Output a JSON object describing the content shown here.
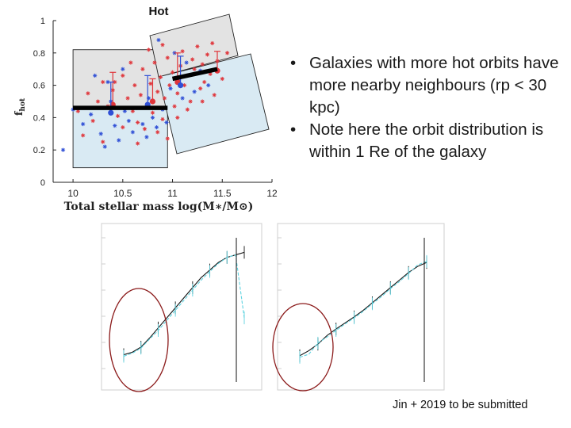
{
  "slide": {
    "bullets": [
      {
        "bullet_glyph": "•",
        "text": "Galaxies with more hot orbits have more nearby neighbours (rp < 30 kpc)"
      },
      {
        "bullet_glyph": "•",
        "text": "Note here the orbit distribution is within 1 Re of the galaxy"
      }
    ],
    "citation": "Jin + 2019 to be submitted"
  },
  "chart_data": [
    {
      "type": "scatter",
      "title": "Hot",
      "xlabel": "Total stellar mass log(M∗/M⊙)",
      "ylabel": "f_hot",
      "ylabel_main": "f",
      "ylabel_sub": "hot",
      "xlim": [
        9.8,
        12
      ],
      "ylim": [
        0,
        1
      ],
      "xticks": [
        "10",
        "10.5",
        "11",
        "11.5",
        "12"
      ],
      "yticks": [
        "0",
        "0.2",
        "0.4",
        "0.6",
        "0.8",
        "1"
      ],
      "grid": false,
      "colors": {
        "red_series": "#e0353a",
        "blue_series": "#2f4fd6",
        "trend": "#000000",
        "gray_region": "#e3e3e3",
        "blue_region": "#d9eaf3"
      },
      "series": [
        {
          "color": "red",
          "marker": "asterisk",
          "points": [
            [
              10.05,
              0.44
            ],
            [
              10.15,
              0.55
            ],
            [
              10.2,
              0.38
            ],
            [
              10.25,
              0.5
            ],
            [
              10.3,
              0.62
            ],
            [
              10.35,
              0.47
            ],
            [
              10.4,
              0.57
            ],
            [
              10.45,
              0.41
            ],
            [
              10.5,
              0.66
            ],
            [
              10.55,
              0.52
            ],
            [
              10.6,
              0.44
            ],
            [
              10.62,
              0.6
            ],
            [
              10.65,
              0.37
            ],
            [
              10.68,
              0.54
            ],
            [
              10.7,
              0.7
            ],
            [
              10.72,
              0.33
            ],
            [
              10.75,
              0.48
            ],
            [
              10.78,
              0.61
            ],
            [
              10.8,
              0.43
            ],
            [
              10.82,
              0.74
            ],
            [
              10.85,
              0.56
            ],
            [
              10.88,
              0.65
            ],
            [
              10.9,
              0.39
            ],
            [
              10.92,
              0.52
            ],
            [
              10.95,
              0.77
            ],
            [
              10.97,
              0.6
            ],
            [
              11.0,
              0.68
            ],
            [
              11.02,
              0.47
            ],
            [
              11.05,
              0.55
            ],
            [
              11.08,
              0.72
            ],
            [
              11.1,
              0.81
            ],
            [
              11.12,
              0.6
            ],
            [
              11.15,
              0.66
            ],
            [
              11.18,
              0.5
            ],
            [
              11.2,
              0.76
            ],
            [
              11.22,
              0.7
            ],
            [
              11.25,
              0.84
            ],
            [
              11.28,
              0.58
            ],
            [
              11.3,
              0.73
            ],
            [
              11.32,
              0.62
            ],
            [
              11.35,
              0.79
            ],
            [
              11.38,
              0.67
            ],
            [
              11.4,
              0.86
            ],
            [
              11.42,
              0.54
            ],
            [
              11.45,
              0.75
            ],
            [
              11.5,
              0.64
            ],
            [
              11.55,
              0.8
            ],
            [
              10.1,
              0.29
            ],
            [
              10.3,
              0.25
            ],
            [
              10.5,
              0.34
            ],
            [
              10.65,
              0.24
            ],
            [
              10.85,
              0.31
            ],
            [
              10.95,
              0.27
            ],
            [
              11.05,
              0.4
            ],
            [
              10.58,
              0.74
            ],
            [
              10.76,
              0.82
            ],
            [
              11.15,
              0.45
            ],
            [
              11.3,
              0.5
            ],
            [
              10.42,
              0.62
            ],
            [
              10.9,
              0.85
            ]
          ]
        },
        {
          "color": "blue",
          "marker": "asterisk",
          "points": [
            [
              9.9,
              0.2
            ],
            [
              10.0,
              0.45
            ],
            [
              10.1,
              0.36
            ],
            [
              10.18,
              0.42
            ],
            [
              10.22,
              0.66
            ],
            [
              10.28,
              0.3
            ],
            [
              10.32,
              0.22
            ],
            [
              10.38,
              0.5
            ],
            [
              10.42,
              0.35
            ],
            [
              10.46,
              0.26
            ],
            [
              10.52,
              0.44
            ],
            [
              10.56,
              0.38
            ],
            [
              10.6,
              0.31
            ],
            [
              10.64,
              0.46
            ],
            [
              10.7,
              0.36
            ],
            [
              10.74,
              0.28
            ],
            [
              10.76,
              0.52
            ],
            [
              10.8,
              0.4
            ],
            [
              10.84,
              0.34
            ],
            [
              10.86,
              0.88
            ],
            [
              10.9,
              0.45
            ],
            [
              10.94,
              0.37
            ],
            [
              10.98,
              0.58
            ],
            [
              11.02,
              0.8
            ],
            [
              11.06,
              0.63
            ],
            [
              11.1,
              0.52
            ],
            [
              11.14,
              0.74
            ],
            [
              11.22,
              0.56
            ],
            [
              11.28,
              0.69
            ],
            [
              11.36,
              0.6
            ],
            [
              10.35,
              0.62
            ],
            [
              10.5,
              0.7
            ]
          ]
        }
      ],
      "binned_means": [
        {
          "color": "red",
          "points": [
            [
              10.4,
              0.48
            ],
            [
              10.8,
              0.5
            ],
            [
              11.05,
              0.62
            ],
            [
              11.45,
              0.69
            ]
          ],
          "upper_error": [
            0.68,
            0.64,
            0.8,
            0.81
          ]
        },
        {
          "color": "blue",
          "points": [
            [
              10.38,
              0.43
            ],
            [
              10.75,
              0.48
            ],
            [
              11.08,
              0.6
            ]
          ],
          "upper_error": [
            0.62,
            0.66,
            0.78
          ]
        }
      ],
      "trend_lines": [
        {
          "x": [
            10.0,
            10.95
          ],
          "y": [
            0.46,
            0.46
          ]
        },
        {
          "x": [
            11.0,
            11.45
          ],
          "y": [
            0.64,
            0.7
          ]
        }
      ],
      "regions": [
        {
          "label": "gray",
          "x": [
            10.0,
            10.95
          ],
          "y": [
            0.46,
            0.82
          ]
        },
        {
          "label": "blue",
          "x": [
            10.0,
            10.95
          ],
          "y": [
            0.09,
            0.46
          ]
        }
      ]
    },
    {
      "type": "line",
      "note": "faded panels; labels illegible",
      "panels": [
        {
          "series": [
            {
              "color": "black",
              "x": [
                1,
                2,
                3,
                4,
                5,
                6,
                7,
                8,
                9,
                10,
                11,
                12,
                13,
                14,
                15
              ],
              "y": [
                0.07,
                0.12,
                0.22,
                0.4,
                0.6,
                0.8,
                1.0,
                1.2,
                1.4,
                1.6,
                1.75,
                1.9,
                2.0,
                2.05,
                2.1
              ]
            },
            {
              "color": "cyan",
              "x": [
                1,
                2,
                3,
                4,
                5,
                6,
                7,
                8,
                9,
                10,
                11,
                12,
                13,
                14,
                15
              ],
              "y": [
                0.04,
                0.1,
                0.2,
                0.38,
                0.55,
                0.75,
                0.95,
                1.15,
                1.35,
                1.55,
                1.72,
                1.88,
                2.0,
                2.05,
                0.8
              ]
            }
          ]
        },
        {
          "series": [
            {
              "color": "black",
              "x": [
                1,
                2,
                3,
                4,
                5,
                6,
                7,
                8,
                9,
                10,
                11,
                12,
                13,
                14,
                15
              ],
              "y": [
                0.05,
                0.15,
                0.28,
                0.45,
                0.58,
                0.7,
                0.82,
                0.95,
                1.1,
                1.25,
                1.4,
                1.55,
                1.7,
                1.82,
                1.9
              ]
            },
            {
              "color": "cyan",
              "x": [
                1,
                2,
                3,
                4,
                5,
                6,
                7,
                8,
                9,
                10,
                11,
                12,
                13,
                14,
                15
              ],
              "y": [
                0.02,
                0.08,
                0.3,
                0.42,
                0.55,
                0.68,
                0.8,
                0.93,
                1.08,
                1.22,
                1.38,
                1.52,
                1.68,
                1.85,
                1.92
              ]
            }
          ]
        }
      ]
    }
  ]
}
